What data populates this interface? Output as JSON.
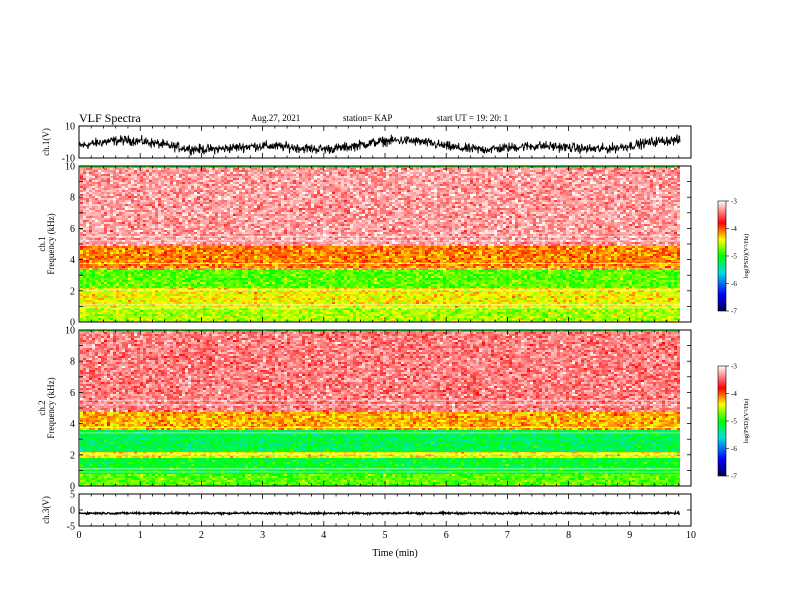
{
  "header": {
    "title": "VLF Spectra",
    "date": "Aug.27, 2021",
    "station": "station= KAP",
    "start": "start  UT  =    19: 20: 1"
  },
  "chart_data": [
    {
      "type": "line",
      "ylabel": "ch.1(V)",
      "ylim": [
        -10,
        10
      ],
      "yticks": [
        "10",
        "-10"
      ],
      "xlim": [
        0,
        10
      ],
      "note": "noisy waveform oscillating roughly between 2 and -7 V"
    },
    {
      "type": "heatmap",
      "ylabel": [
        "ch.1",
        "Frequency  (kHz)"
      ],
      "ylim": [
        0,
        10
      ],
      "yticks": [
        "0",
        "2",
        "4",
        "6",
        "8",
        "10"
      ],
      "xlim": [
        0,
        10
      ],
      "colorbar": {
        "label": "log(PSD)(V²/Hz)",
        "range": [
          -7,
          -3
        ],
        "ticks": [
          "-3",
          "-4",
          "-5",
          "-6",
          "-7"
        ]
      },
      "bands_khz": [
        {
          "from": 0.0,
          "to": 1.0,
          "level": -4.6
        },
        {
          "from": 1.0,
          "to": 2.2,
          "level": -4.4
        },
        {
          "from": 2.2,
          "to": 3.4,
          "level": -4.8
        },
        {
          "from": 3.4,
          "to": 4.9,
          "level": -4.1
        },
        {
          "from": 4.9,
          "to": 10.0,
          "level": -3.3
        }
      ]
    },
    {
      "type": "heatmap",
      "ylabel": [
        "ch.2",
        "Frequency  (kHz)"
      ],
      "ylim": [
        0,
        10
      ],
      "yticks": [
        "0",
        "2",
        "4",
        "6",
        "8",
        "10"
      ],
      "xlim": [
        0,
        10
      ],
      "colorbar": {
        "label": "log(PSD)(V²/Hz)",
        "range": [
          -7,
          -3
        ],
        "ticks": [
          "-3",
          "-4",
          "-5",
          "-6",
          "-7"
        ]
      },
      "bands_khz": [
        {
          "from": 0.0,
          "to": 0.8,
          "level": -4.8
        },
        {
          "from": 0.8,
          "to": 1.8,
          "level": -5.1
        },
        {
          "from": 1.8,
          "to": 2.2,
          "level": -4.4
        },
        {
          "from": 2.2,
          "to": 3.6,
          "level": -5.2
        },
        {
          "from": 3.6,
          "to": 4.8,
          "level": -4.2
        },
        {
          "from": 4.8,
          "to": 10.0,
          "level": -3.4
        }
      ]
    },
    {
      "type": "line",
      "ylabel": "ch.3(V)",
      "ylim": [
        -5,
        5
      ],
      "yticks": [
        "5",
        "0",
        "-5"
      ],
      "xlim": [
        0,
        10
      ],
      "xticks": [
        "0",
        "1",
        "2",
        "3",
        "4",
        "5",
        "6",
        "7",
        "8",
        "9",
        "10"
      ],
      "xlabel": "Time  (min)",
      "note": "dense trace near -1 V with small spread"
    }
  ]
}
